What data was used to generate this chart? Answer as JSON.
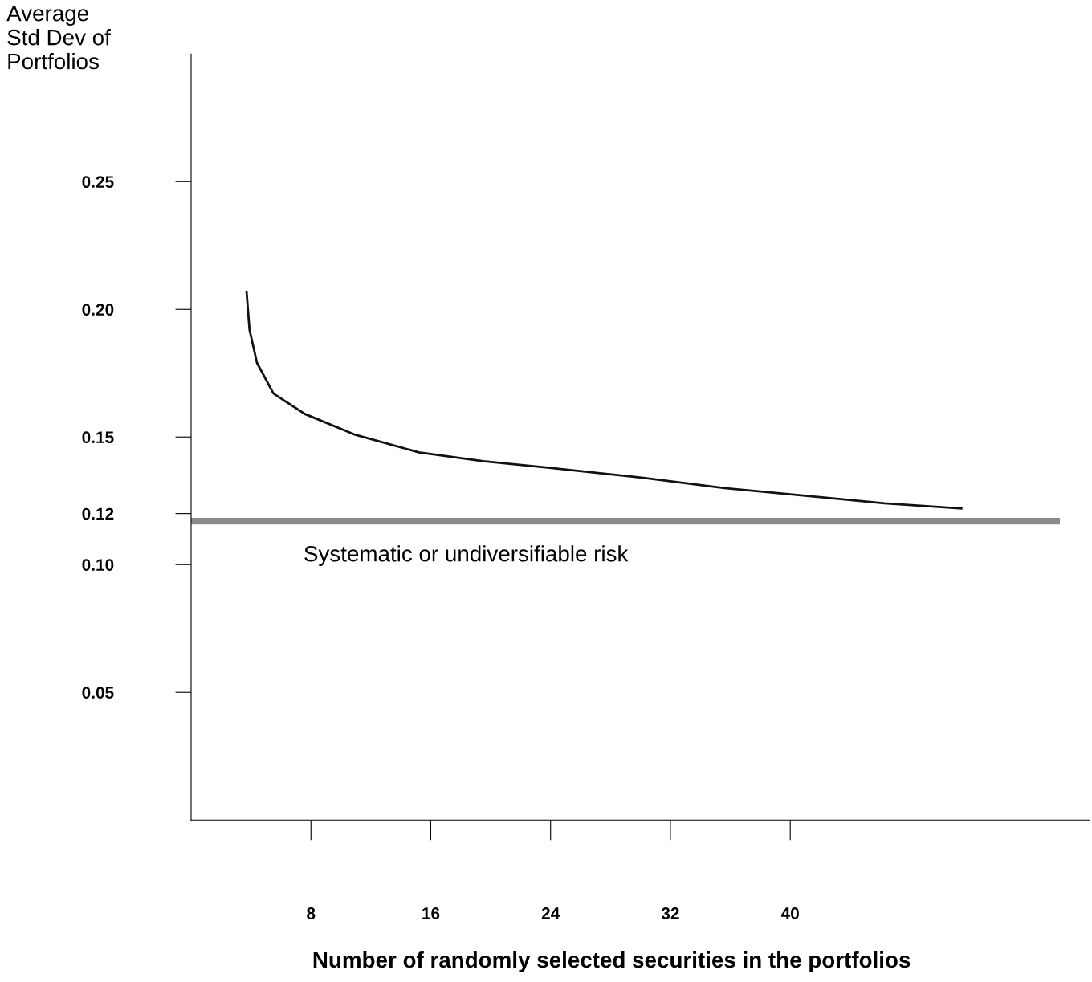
{
  "chart_data": {
    "type": "line",
    "ylabel": "Average\nStd Dev of\nPortfolios",
    "xlabel": "Number of randomly selected securities in the portfolios",
    "xlim": [
      0,
      60
    ],
    "xticks": [
      8,
      16,
      24,
      32,
      40
    ],
    "ylim": [
      0,
      0.3
    ],
    "yticks": [
      0.05,
      {
        "value": 0.1,
        "label": "0.10"
      },
      0.12,
      0.15,
      {
        "value": 0.2,
        "label": "0.20"
      },
      0.25
    ],
    "grid": false,
    "legend": false,
    "series": [
      {
        "color": "#111111",
        "x": [
          3.7,
          3.9,
          4.4,
          5.5,
          7.6,
          10.9,
          15.2,
          19.5,
          23.8,
          30.2,
          35.6,
          41,
          46.3,
          51.5
        ],
        "values": [
          0.207,
          0.192,
          0.179,
          0.167,
          0.159,
          0.151,
          0.144,
          0.1405,
          0.138,
          0.134,
          0.13,
          0.127,
          0.124,
          0.122
        ]
      },
      {
        "color": "#8a8a8a",
        "x": [
          0,
          58
        ],
        "values": [
          0.117,
          0.117
        ]
      }
    ],
    "annotations": [
      "Systematic or undiversifiable risk"
    ]
  }
}
